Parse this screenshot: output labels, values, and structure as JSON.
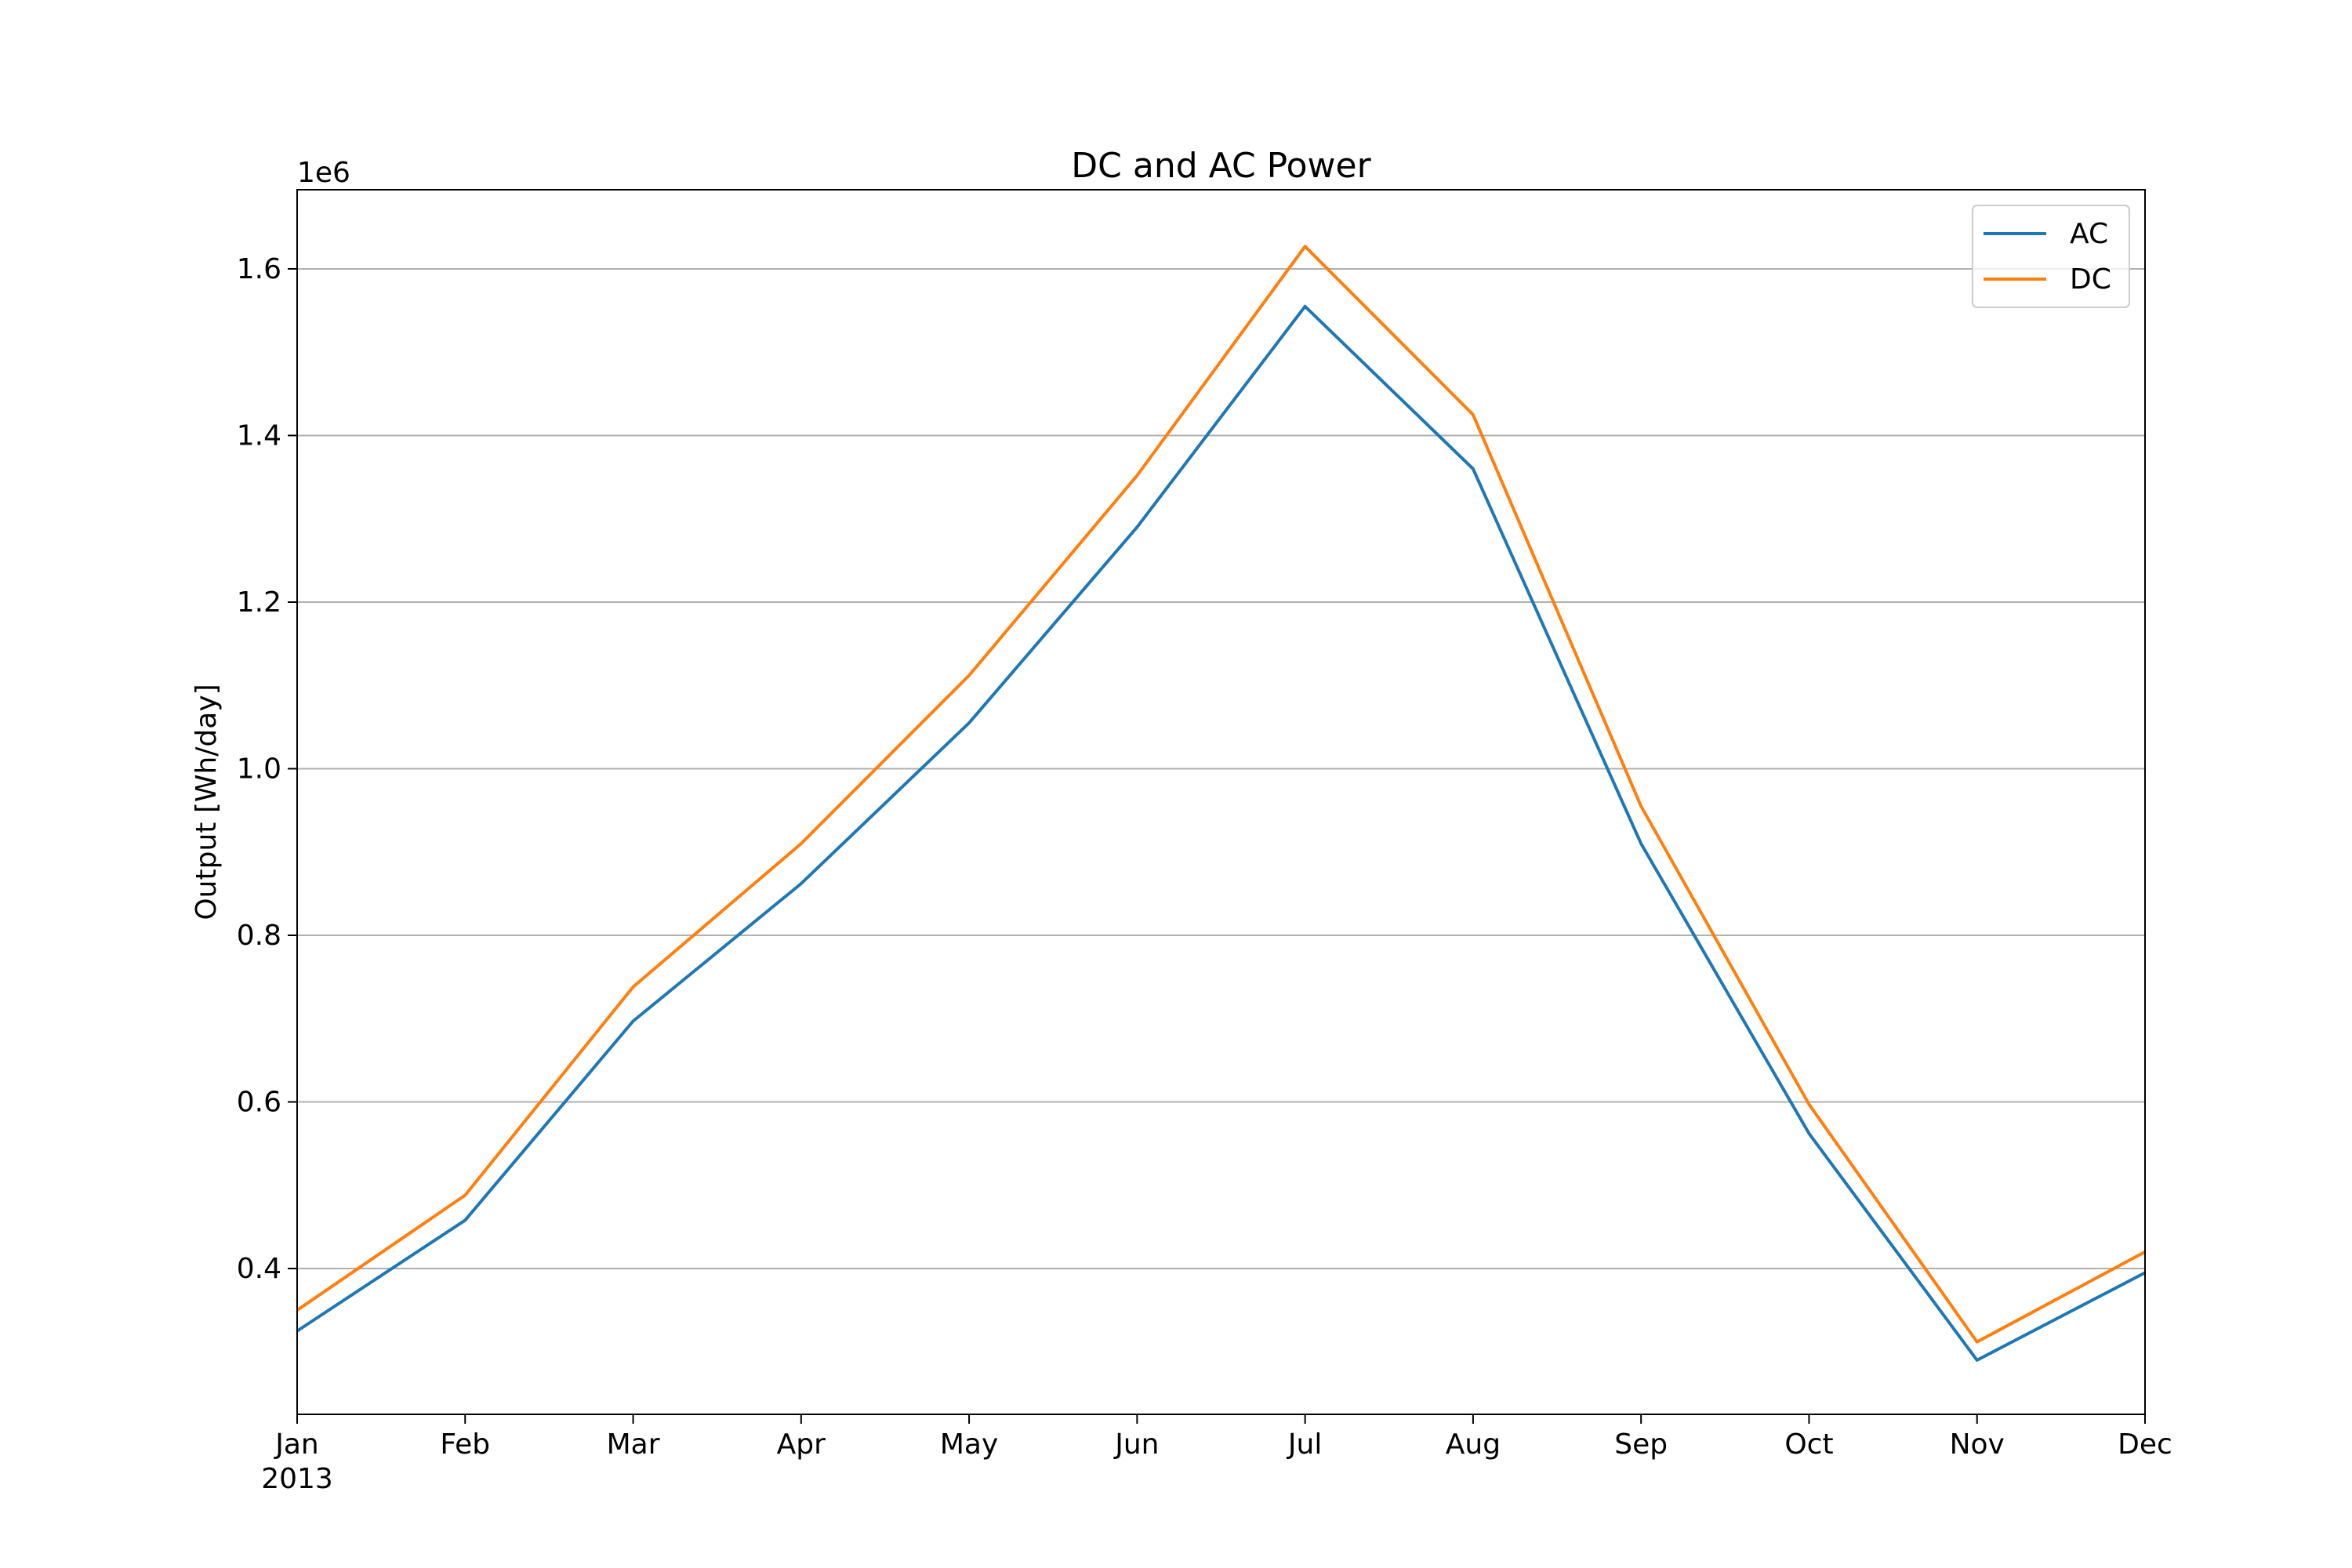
{
  "chart_data": {
    "type": "line",
    "title": "DC and AC Power",
    "xlabel": "",
    "ylabel": "Output [Wh/day]",
    "y_offset_label": "1e6",
    "categories": [
      "Jan",
      "Feb",
      "Mar",
      "Apr",
      "May",
      "Jun",
      "Jul",
      "Aug",
      "Sep",
      "Oct",
      "Nov",
      "Dec"
    ],
    "year_label": "2013",
    "y_ticks": [
      0.4,
      0.6,
      0.8,
      1.0,
      1.2,
      1.4,
      1.6
    ],
    "y_tick_labels": [
      "0.4",
      "0.6",
      "0.8",
      "1.0",
      "1.2",
      "1.4",
      "1.6"
    ],
    "ylim": [
      0.225,
      1.695
    ],
    "grid": "y",
    "legend_position": "top-right",
    "series": [
      {
        "name": "AC",
        "color": "#1f77b4",
        "values": [
          0.325,
          0.458,
          0.697,
          0.862,
          1.055,
          1.29,
          1.555,
          1.36,
          0.91,
          0.562,
          0.29,
          0.395
        ]
      },
      {
        "name": "DC",
        "color": "#ff7f0e",
        "values": [
          0.35,
          0.488,
          0.738,
          0.91,
          1.112,
          1.352,
          1.627,
          1.425,
          0.955,
          0.597,
          0.312,
          0.42
        ]
      }
    ]
  }
}
